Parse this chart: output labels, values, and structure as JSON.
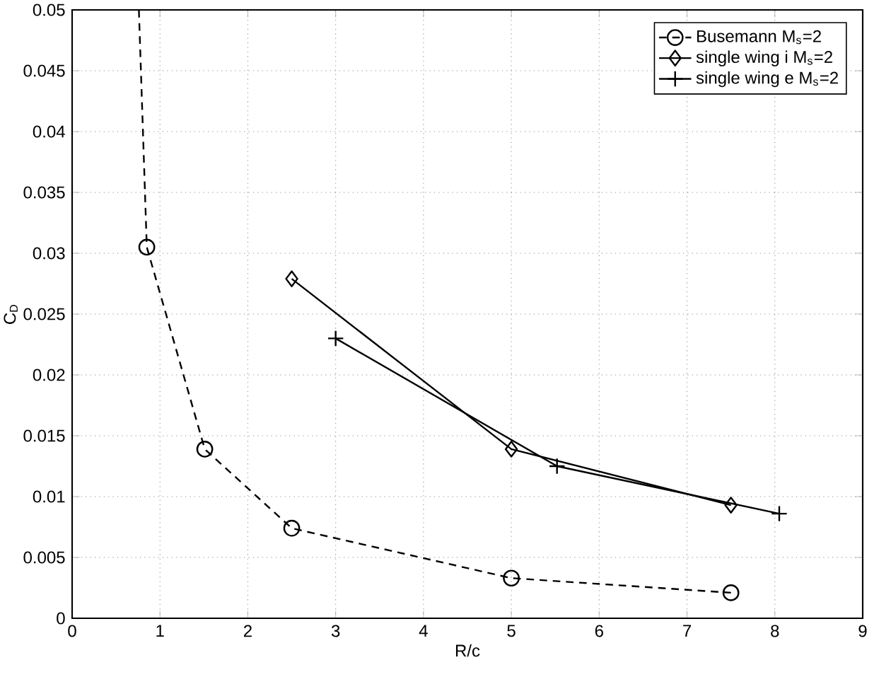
{
  "chart_data": {
    "type": "line",
    "xlabel": "R/c",
    "ylabel": "C$_{D}$",
    "xlim": [
      0,
      9
    ],
    "ylim": [
      0,
      0.05
    ],
    "xticks": [
      0,
      1,
      2,
      3,
      4,
      5,
      6,
      7,
      8,
      9
    ],
    "yticks": [
      0,
      0.005,
      0.01,
      0.015,
      0.02,
      0.025,
      0.03,
      0.035,
      0.04,
      0.045,
      0.05
    ],
    "grid": true,
    "legend": "top right",
    "series": [
      {
        "name": "Busemann M$_{s}$=2",
        "color": "#000000",
        "marker": "circle",
        "line_style": "dashed",
        "x": [
          0.76,
          0.85,
          1.51,
          2.5,
          5,
          7.5
        ],
        "values": [
          0.05,
          0.0305,
          0.0139,
          0.0074,
          0.0033,
          0.0021
        ]
      },
      {
        "name": "single wing i M$_{s}$=2",
        "color": "#000000",
        "marker": "diamond",
        "line_style": "solid",
        "x": [
          2.5,
          5,
          7.5
        ],
        "values": [
          0.0279,
          0.0139,
          0.0093
        ]
      },
      {
        "name": "single wing e M$_{s}$=2",
        "color": "#000000",
        "marker": "cross",
        "line_style": "solid",
        "x": [
          3,
          5.52,
          8.05
        ],
        "values": [
          0.023,
          0.0125,
          0.0086
        ]
      }
    ]
  }
}
